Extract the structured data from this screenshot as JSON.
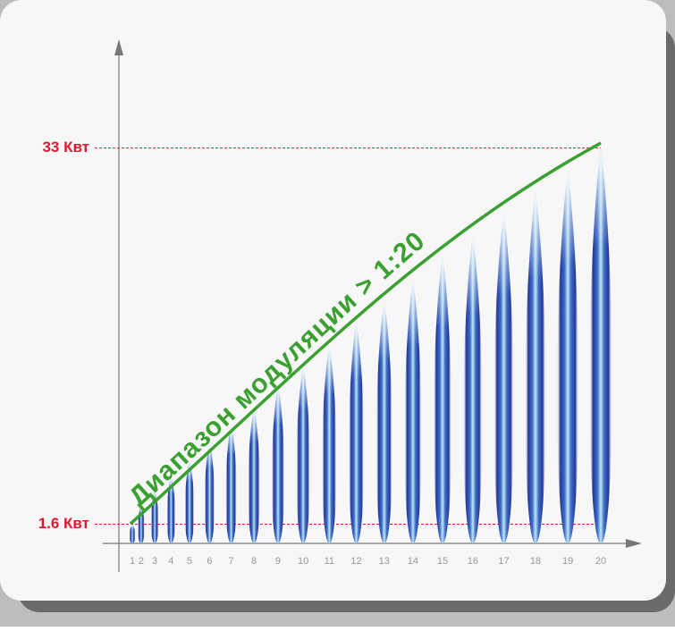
{
  "chart_data": {
    "type": "flame",
    "annotation": "Диапазон модуляции > 1:20",
    "categories": [
      "1",
      "2",
      "3",
      "4",
      "5",
      "6",
      "7",
      "8",
      "9",
      "10",
      "11",
      "12",
      "13",
      "14",
      "15",
      "16",
      "17",
      "18",
      "19",
      "20"
    ],
    "values": [
      1.6,
      3.2,
      4.4,
      5.6,
      6.9,
      8.4,
      9.9,
      11.3,
      13.2,
      14.8,
      16.5,
      18.5,
      20.2,
      22,
      24,
      25.6,
      27.6,
      29.3,
      31,
      33
    ],
    "ylim": [
      0,
      42
    ],
    "yticks": [
      {
        "value": 1.6,
        "label": "1.6 Квт"
      },
      {
        "value": 33,
        "label": "33 Квт"
      }
    ],
    "color": "#2a3f9e",
    "reference_color": "#e0182d",
    "curve_color": "#3aa030"
  }
}
